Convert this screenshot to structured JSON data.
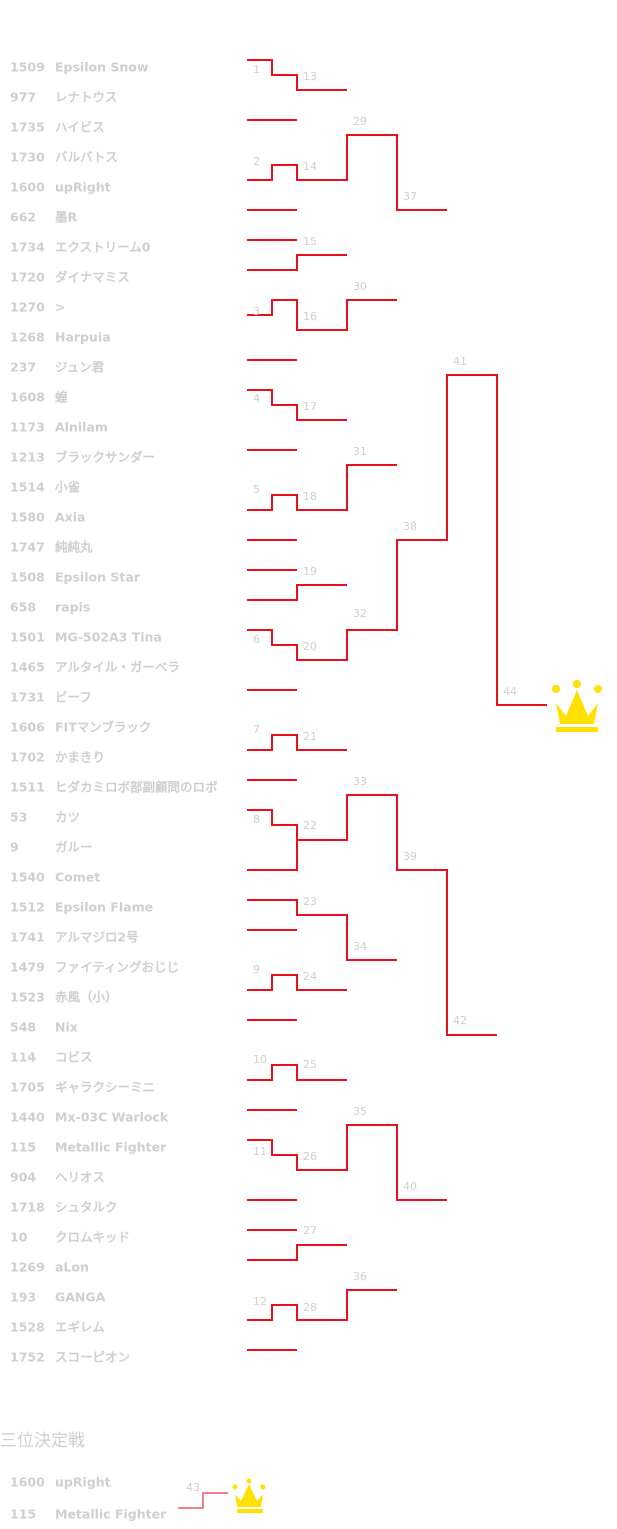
{
  "bracket": {
    "entries": [
      {
        "seed": 1509,
        "name": "Epsilon Snow"
      },
      {
        "seed": 977,
        "name": "レナトウス"
      },
      {
        "seed": 1735,
        "name": "ハイビス"
      },
      {
        "seed": 1730,
        "name": "バルバトス"
      },
      {
        "seed": 1600,
        "name": "upRight"
      },
      {
        "seed": 662,
        "name": "墨R"
      },
      {
        "seed": 1734,
        "name": "エクストリーム0"
      },
      {
        "seed": 1720,
        "name": "ダイナマミス"
      },
      {
        "seed": 1270,
        "name": ">"
      },
      {
        "seed": 1268,
        "name": "Harpuia"
      },
      {
        "seed": 237,
        "name": "ジュン君"
      },
      {
        "seed": 1608,
        "name": "蝗"
      },
      {
        "seed": 1173,
        "name": "Alnilam"
      },
      {
        "seed": 1213,
        "name": "ブラックサンダー"
      },
      {
        "seed": 1514,
        "name": "小雀"
      },
      {
        "seed": 1580,
        "name": "Axia"
      },
      {
        "seed": 1747,
        "name": "純純丸"
      },
      {
        "seed": 1508,
        "name": "Epsilon Star"
      },
      {
        "seed": 658,
        "name": "rapis"
      },
      {
        "seed": 1501,
        "name": "MG-502A3 Tina"
      },
      {
        "seed": 1465,
        "name": "アルタイル・ガーベラ"
      },
      {
        "seed": 1731,
        "name": "ビーフ"
      },
      {
        "seed": 1606,
        "name": "FITマンブラック"
      },
      {
        "seed": 1702,
        "name": "かまきり"
      },
      {
        "seed": 1511,
        "name": "ヒダカミロボ部副顧問のロボ"
      },
      {
        "seed": 53,
        "name": "カツ"
      },
      {
        "seed": 9,
        "name": "ガルー"
      },
      {
        "seed": 1540,
        "name": "Comet"
      },
      {
        "seed": 1512,
        "name": "Epsilon Flame"
      },
      {
        "seed": 1741,
        "name": "アルマジロ2号"
      },
      {
        "seed": 1479,
        "name": "ファイティングおじじ"
      },
      {
        "seed": 1523,
        "name": "赤風（小）"
      },
      {
        "seed": 548,
        "name": "Nix"
      },
      {
        "seed": 114,
        "name": "コビス"
      },
      {
        "seed": 1705,
        "name": "ギャラクシーミニ"
      },
      {
        "seed": 1440,
        "name": "Mx-03C Warlock"
      },
      {
        "seed": 115,
        "name": "Metallic Fighter"
      },
      {
        "seed": 904,
        "name": "ヘリオス"
      },
      {
        "seed": 1718,
        "name": "シュタルク"
      },
      {
        "seed": 10,
        "name": "クロムキッド"
      },
      {
        "seed": 1269,
        "name": "aLon"
      },
      {
        "seed": 193,
        "name": "GANGA"
      },
      {
        "seed": 1528,
        "name": "エギレム"
      },
      {
        "seed": 1752,
        "name": "スコーピオン"
      }
    ],
    "matches": [
      1,
      2,
      3,
      4,
      5,
      6,
      7,
      8,
      9,
      10,
      11,
      12,
      13,
      14,
      15,
      16,
      17,
      18,
      19,
      20,
      21,
      22,
      23,
      24,
      25,
      26,
      27,
      28,
      29,
      30,
      31,
      32,
      33,
      34,
      35,
      36,
      37,
      38,
      39,
      40,
      41,
      42,
      44
    ]
  },
  "third_place": {
    "title": "三位決定戦",
    "entries": [
      {
        "seed": 1600,
        "name": "upRight"
      },
      {
        "seed": 115,
        "name": "Metallic Fighter"
      }
    ],
    "match": 43
  }
}
